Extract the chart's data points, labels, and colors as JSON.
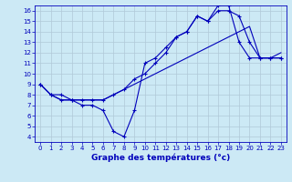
{
  "xlabel": "Graphe des températures (°c)",
  "background_color": "#cce9f5",
  "grid_color": "#b0c8d8",
  "line_color": "#0000bb",
  "series1": {
    "x": [
      0,
      1,
      2,
      3,
      4,
      5,
      6,
      7,
      8,
      9,
      10,
      11,
      12,
      13,
      14,
      15,
      16,
      17,
      18,
      19,
      20,
      21,
      22,
      23
    ],
    "y": [
      9,
      8,
      8,
      7.5,
      7,
      7,
      6.5,
      4.5,
      4,
      6.5,
      11,
      11.5,
      12.5,
      13.5,
      14,
      15.5,
      15,
      16.5,
      16.5,
      13,
      11.5,
      11.5,
      11.5,
      11.5
    ],
    "marker": true
  },
  "series2": {
    "x": [
      0,
      1,
      2,
      3,
      4,
      5,
      6,
      7,
      8,
      9,
      10,
      11,
      12,
      13,
      14,
      15,
      16,
      17,
      18,
      19,
      20,
      21,
      22,
      23
    ],
    "y": [
      9,
      8,
      7.5,
      7.5,
      7.5,
      7.5,
      7.5,
      8,
      8.5,
      9,
      9.5,
      10,
      10.5,
      11,
      11.5,
      12,
      12.5,
      13,
      13.5,
      14,
      14.5,
      11.5,
      11.5,
      12
    ],
    "marker": false
  },
  "series3": {
    "x": [
      0,
      1,
      2,
      3,
      4,
      5,
      6,
      7,
      8,
      9,
      10,
      11,
      12,
      13,
      14,
      15,
      16,
      17,
      18,
      19,
      20,
      21,
      22,
      23
    ],
    "y": [
      9,
      8,
      7.5,
      7.5,
      7.5,
      7.5,
      7.5,
      8,
      8.5,
      9.5,
      10,
      11,
      12,
      13.5,
      14,
      15.5,
      15,
      16,
      16,
      15.5,
      13,
      11.5,
      11.5,
      11.5
    ],
    "marker": true
  },
  "xlim": [
    -0.5,
    23.5
  ],
  "ylim": [
    3.5,
    16.5
  ],
  "xticks": [
    0,
    1,
    2,
    3,
    4,
    5,
    6,
    7,
    8,
    9,
    10,
    11,
    12,
    13,
    14,
    15,
    16,
    17,
    18,
    19,
    20,
    21,
    22,
    23
  ],
  "yticks": [
    4,
    5,
    6,
    7,
    8,
    9,
    10,
    11,
    12,
    13,
    14,
    15,
    16
  ],
  "xlabel_fontsize": 6.5,
  "tick_fontsize": 5.0
}
